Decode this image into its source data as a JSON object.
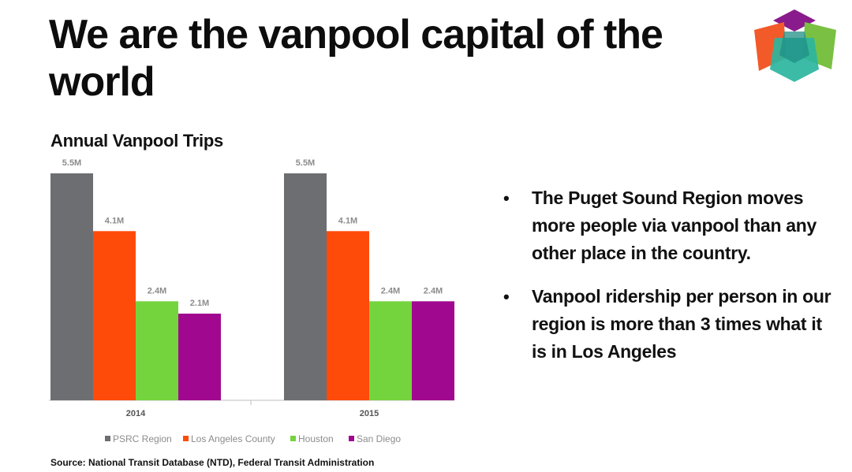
{
  "slide": {
    "title": "We are the vanpool capital of the world",
    "source": "Source: National Transit Database (NTD), Federal Transit Administration"
  },
  "bullets": [
    "The Puget Sound Region moves more people via vanpool than any other place in the country.",
    "Vanpool ridership per person in our region is more than 3 times what it is in Los Angeles"
  ],
  "logo": {
    "icon": "cube-logo-icon",
    "colors": [
      "#8a1b8c",
      "#f25a29",
      "#7ac143",
      "#2bb5a0"
    ]
  },
  "chart_data": {
    "type": "bar",
    "title": "Annual Vanpool Trips",
    "categories": [
      "2014",
      "2015"
    ],
    "series": [
      {
        "name": "PSRC Region",
        "color": "#6d6e71",
        "values": [
          5.5,
          5.5
        ],
        "labels": [
          "5.5M",
          "5.5M"
        ]
      },
      {
        "name": "Los Angeles County",
        "color": "#ff4b0a",
        "values": [
          4.1,
          4.1
        ],
        "labels": [
          "4.1M",
          "4.1M"
        ]
      },
      {
        "name": "Houston",
        "color": "#74d43e",
        "values": [
          2.4,
          2.4
        ],
        "labels": [
          "2.4M",
          "2.4M"
        ]
      },
      {
        "name": "San Diego",
        "color": "#a0098f",
        "values": [
          2.1,
          2.4
        ],
        "labels": [
          "2.1M",
          "2.4M"
        ]
      }
    ],
    "ylim": [
      0,
      6
    ],
    "grid": false,
    "legend": "bottom"
  }
}
